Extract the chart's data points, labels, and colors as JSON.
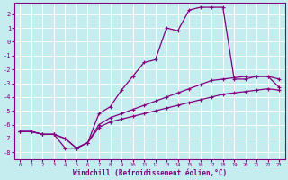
{
  "xlabel": "Windchill (Refroidissement éolien,°C)",
  "xlim": [
    -0.5,
    23.5
  ],
  "ylim": [
    -8.5,
    2.8
  ],
  "xticks": [
    0,
    1,
    2,
    3,
    4,
    5,
    6,
    7,
    8,
    9,
    10,
    11,
    12,
    13,
    14,
    15,
    16,
    17,
    18,
    19,
    20,
    21,
    22,
    23
  ],
  "yticks": [
    -8,
    -7,
    -6,
    -5,
    -4,
    -3,
    -2,
    -1,
    0,
    1,
    2
  ],
  "bg_color": "#c5ecee",
  "line_color": "#800080",
  "grid_color": "#ffffff",
  "line1_x": [
    0,
    1,
    2,
    3,
    4,
    5,
    6,
    7,
    8,
    9,
    10,
    11,
    12,
    13,
    14,
    15,
    16,
    17,
    18,
    19,
    20,
    21,
    22,
    23
  ],
  "line1_y": [
    -6.5,
    -6.5,
    -6.7,
    -6.7,
    -7.0,
    -7.7,
    -7.3,
    -6.2,
    -5.8,
    -5.6,
    -5.4,
    -5.2,
    -5.0,
    -4.8,
    -4.6,
    -4.4,
    -4.2,
    -4.0,
    -3.8,
    -3.7,
    -3.6,
    -3.5,
    -3.4,
    -3.5
  ],
  "line2_x": [
    0,
    1,
    2,
    3,
    4,
    5,
    6,
    7,
    8,
    9,
    10,
    11,
    12,
    13,
    14,
    15,
    16,
    17,
    18,
    19,
    20,
    21,
    22,
    23
  ],
  "line2_y": [
    -6.5,
    -6.5,
    -6.7,
    -6.7,
    -7.0,
    -7.7,
    -7.3,
    -6.0,
    -5.5,
    -5.2,
    -4.9,
    -4.6,
    -4.3,
    -4.0,
    -3.7,
    -3.4,
    -3.1,
    -2.8,
    -2.7,
    -2.6,
    -2.5,
    -2.5,
    -2.5,
    -2.7
  ],
  "line3_x": [
    0,
    1,
    2,
    3,
    4,
    5,
    6,
    7,
    8,
    9,
    10,
    11,
    12,
    13,
    14,
    15,
    16,
    17,
    18,
    19,
    20,
    21,
    22,
    23
  ],
  "line3_y": [
    -6.5,
    -6.5,
    -6.7,
    -6.7,
    -7.7,
    -7.7,
    -7.3,
    -5.2,
    -4.7,
    -3.5,
    -2.5,
    -1.5,
    -1.3,
    1.0,
    0.8,
    2.3,
    2.5,
    2.5,
    2.5,
    -2.7,
    -2.7,
    -2.5,
    -2.5,
    -3.3
  ]
}
